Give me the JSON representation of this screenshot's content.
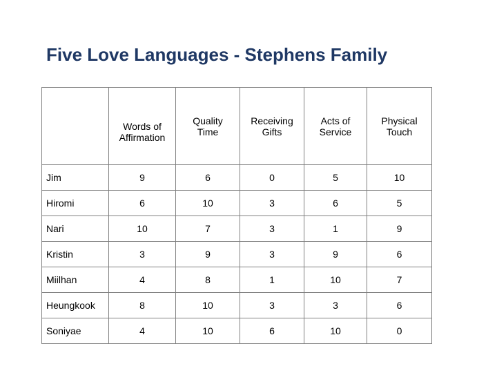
{
  "title": "Five Love Languages - Stephens Family",
  "table": {
    "corner": "",
    "headers": [
      {
        "line1": "Words of",
        "line2": "Affirmation"
      },
      {
        "line1": "Quality",
        "line2": "Time"
      },
      {
        "line1": "Receiving",
        "line2": "Gifts"
      },
      {
        "line1": "Acts of",
        "line2": "Service"
      },
      {
        "line1": "Physical",
        "line2": "Touch"
      }
    ],
    "rows": [
      {
        "name": "Jim",
        "values": [
          "9",
          "6",
          "0",
          "5",
          "10"
        ]
      },
      {
        "name": "Hiromi",
        "values": [
          "6",
          "10",
          "3",
          "6",
          "5"
        ]
      },
      {
        "name": "Nari",
        "values": [
          "10",
          "7",
          "3",
          "1",
          "9"
        ]
      },
      {
        "name": "Kristin",
        "values": [
          "3",
          "9",
          "3",
          "9",
          "6"
        ]
      },
      {
        "name": "Miilhan",
        "values": [
          "4",
          "8",
          "1",
          "10",
          "7"
        ]
      },
      {
        "name": "Heungkook",
        "values": [
          "8",
          "10",
          "3",
          "3",
          "6"
        ]
      },
      {
        "name": "Soniyae",
        "values": [
          "4",
          "10",
          "6",
          "10",
          "0"
        ]
      }
    ]
  }
}
